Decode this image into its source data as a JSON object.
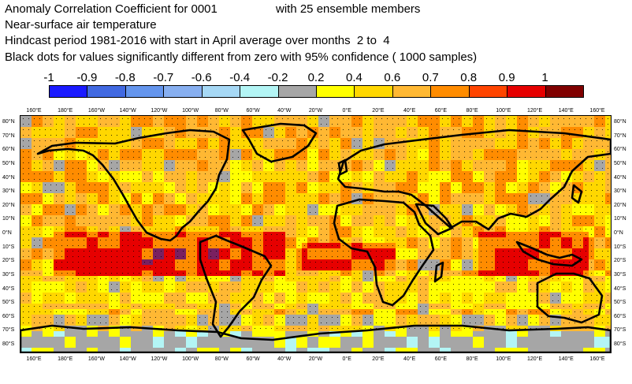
{
  "header": {
    "line1": "Anomaly Correlation Coefficient for 0001",
    "line1b": "with 25 ensemble members",
    "line2": "Near-surface air temperature",
    "line3": "Hindcast period 1981-2016 with start in April average over months  2 to  4",
    "line4": "Black dots for values significantly different from zero with 95% confidence ( 1000 samples)"
  },
  "colorbar": {
    "labels": [
      "-1",
      "-0.9",
      "-0.8",
      "-0.7",
      "-0.6",
      "-0.4",
      "-0.2",
      "0.2",
      "0.4",
      "0.6",
      "0.7",
      "0.8",
      "0.9",
      "1"
    ],
    "colors": [
      "#1a1aff",
      "#4169e1",
      "#6495ed",
      "#87aff0",
      "#a6d8f5",
      "#b3f5f5",
      "#a6a6a6",
      "#ffff00",
      "#ffd700",
      "#ffb833",
      "#ff8c00",
      "#ff4500",
      "#e60000",
      "#800000"
    ]
  },
  "axes": {
    "lon_labels": [
      "160°E",
      "180°E",
      "160°W",
      "140°W",
      "120°W",
      "100°W",
      "80°W",
      "60°W",
      "40°W",
      "20°W",
      "0°E",
      "20°E",
      "40°E",
      "60°E",
      "80°E",
      "100°E",
      "120°E",
      "140°E",
      "160°E"
    ],
    "lat_labels": [
      "80°N",
      "70°N",
      "60°N",
      "50°N",
      "40°N",
      "30°N",
      "20°N",
      "10°N",
      "0°N",
      "10°S",
      "20°S",
      "30°S",
      "40°S",
      "50°S",
      "60°S",
      "70°S",
      "80°S"
    ]
  },
  "map": {
    "land_color": "#000000",
    "dot_color": "#000000"
  }
}
